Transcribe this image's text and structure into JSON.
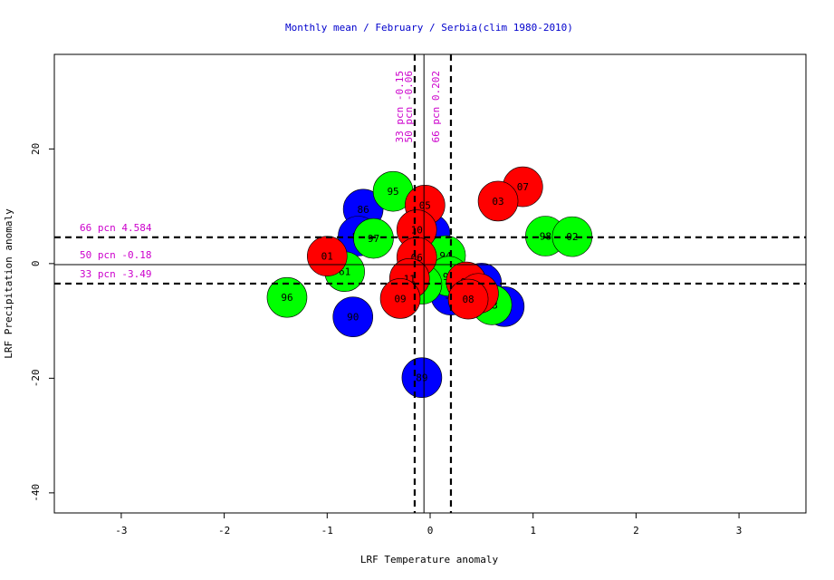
{
  "chart_data": {
    "type": "scatter",
    "title": "Monthly mean / February / Serbia(clim 1980-2010)",
    "xlabel": "LRF Temperature anomaly",
    "ylabel": "LRF Precipitation anomaly",
    "xlim": [
      -3.65,
      3.65
    ],
    "ylim": [
      -43.5,
      36.5
    ],
    "x_ticks": [
      {
        "value": -3,
        "label": "-3"
      },
      {
        "value": -2,
        "label": "-2"
      },
      {
        "value": -1,
        "label": "-1"
      },
      {
        "value": 0,
        "label": "0"
      },
      {
        "value": 1,
        "label": "1"
      },
      {
        "value": 2,
        "label": "2"
      },
      {
        "value": 3,
        "label": "3"
      }
    ],
    "y_ticks": [
      {
        "value": -40,
        "label": "-40"
      },
      {
        "value": -20,
        "label": "-20"
      },
      {
        "value": 0,
        "label": "0"
      },
      {
        "value": 20,
        "label": "20"
      }
    ],
    "grid": false,
    "colors": {
      "title": "#0000cc",
      "pcn_text": "#cc00cc",
      "blue": "#0000ff",
      "green": "#00ff00",
      "red": "#ff0000"
    },
    "vertical_lines": [
      {
        "x": -0.15,
        "label": "33 pcn -0.15",
        "style": "dashed"
      },
      {
        "x": -0.06,
        "label": "50 pcn -0.06",
        "style": "solid"
      },
      {
        "x": 0.202,
        "label": "66 pcn 0.202",
        "style": "dashed"
      }
    ],
    "horizontal_lines": [
      {
        "y": 4.584,
        "label": "66 pcn 4.584",
        "style": "dashed"
      },
      {
        "y": -0.18,
        "label": "50 pcn -0.18",
        "style": "solid"
      },
      {
        "y": -3.49,
        "label": "33 pcn -3.49",
        "style": "dashed"
      }
    ],
    "points": [
      {
        "label": "86",
        "x": -0.65,
        "y": 9.5,
        "color": "blue"
      },
      {
        "label": "87",
        "x": -0.7,
        "y": 4.8,
        "color": "blue"
      },
      {
        "label": "90",
        "x": -0.75,
        "y": -9.3,
        "color": "blue"
      },
      {
        "label": "89",
        "x": -0.08,
        "y": -19.9,
        "color": "blue"
      },
      {
        "label": "85",
        "x": 0.0,
        "y": 5.2,
        "color": "blue"
      },
      {
        "label": "91",
        "x": 0.2,
        "y": -5.5,
        "color": "blue"
      },
      {
        "label": "83",
        "x": 0.72,
        "y": -7.5,
        "color": "blue"
      },
      {
        "label": "81",
        "x": 0.5,
        "y": -3.4,
        "color": "blue"
      },
      {
        "label": "95",
        "x": -0.36,
        "y": 12.6,
        "color": "green"
      },
      {
        "label": "97",
        "x": -0.55,
        "y": 4.4,
        "color": "green"
      },
      {
        "label": "61",
        "x": -0.83,
        "y": -1.4,
        "color": "green"
      },
      {
        "label": "96",
        "x": -1.39,
        "y": -5.9,
        "color": "green"
      },
      {
        "label": "94",
        "x": 0.15,
        "y": 1.4,
        "color": "green"
      },
      {
        "label": "92",
        "x": 0.18,
        "y": -2.2,
        "color": "green"
      },
      {
        "label": "00",
        "x": -0.08,
        "y": -3.6,
        "color": "green"
      },
      {
        "label": "93",
        "x": 0.6,
        "y": -7.2,
        "color": "green"
      },
      {
        "label": "98",
        "x": 1.12,
        "y": 4.8,
        "color": "green"
      },
      {
        "label": "02",
        "x": 1.38,
        "y": 4.7,
        "color": "green"
      },
      {
        "label": "01",
        "x": -1.0,
        "y": 1.3,
        "color": "red"
      },
      {
        "label": "07",
        "x": 0.9,
        "y": 13.4,
        "color": "red"
      },
      {
        "label": "03",
        "x": 0.66,
        "y": 10.9,
        "color": "red"
      },
      {
        "label": "05",
        "x": -0.05,
        "y": 10.2,
        "color": "red"
      },
      {
        "label": "10",
        "x": -0.13,
        "y": 5.9,
        "color": "red"
      },
      {
        "label": "06",
        "x": -0.13,
        "y": 1.1,
        "color": "red"
      },
      {
        "label": "11",
        "x": -0.2,
        "y": -2.6,
        "color": "red"
      },
      {
        "label": "09",
        "x": -0.29,
        "y": -6.1,
        "color": "red"
      },
      {
        "label": "05",
        "x": 0.35,
        "y": -3.2,
        "color": "red"
      },
      {
        "label": "04",
        "x": 0.47,
        "y": -5.2,
        "color": "red"
      },
      {
        "label": "08",
        "x": 0.37,
        "y": -6.2,
        "color": "red"
      }
    ]
  }
}
